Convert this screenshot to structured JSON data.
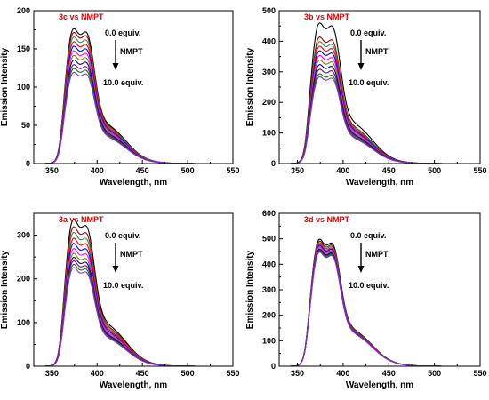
{
  "chart_data": [
    {
      "type": "line",
      "title": "3c vs NMPT",
      "xlabel": "Wavelength, nm",
      "ylabel": "Emission Intensity",
      "xlim": [
        330,
        550
      ],
      "ylim": [
        0,
        200
      ],
      "xticks": [
        350,
        400,
        450,
        500,
        550
      ],
      "yticks": [
        0,
        50,
        100,
        150,
        200
      ],
      "annotations": {
        "start": "0.0 equiv.",
        "label": "NMPT",
        "end": "10.0 equiv."
      },
      "series": [
        {
          "color": "#000000",
          "peak1": 175,
          "peak2": 178
        },
        {
          "color": "#b00000",
          "peak1": 170,
          "peak2": 173
        },
        {
          "color": "#2e8b57",
          "peak1": 164,
          "peak2": 167
        },
        {
          "color": "#ff0000",
          "peak1": 158,
          "peak2": 161
        },
        {
          "color": "#0000ff",
          "peak1": 152,
          "peak2": 155
        },
        {
          "color": "#ff00ff",
          "peak1": 146,
          "peak2": 149
        },
        {
          "color": "#808000",
          "peak1": 140,
          "peak2": 143
        },
        {
          "color": "#000080",
          "peak1": 134,
          "peak2": 137
        },
        {
          "color": "#800080",
          "peak1": 128,
          "peak2": 131
        },
        {
          "color": "#008000",
          "peak1": 123,
          "peak2": 126
        },
        {
          "color": "#8a2be2",
          "peak1": 118,
          "peak2": 121
        }
      ]
    },
    {
      "type": "line",
      "title": "3b vs NMPT",
      "xlabel": "Wavelength, nm",
      "ylabel": "Emission Intensity",
      "xlim": [
        330,
        550
      ],
      "ylim": [
        0,
        500
      ],
      "xticks": [
        350,
        400,
        450,
        500,
        550
      ],
      "yticks": [
        0,
        100,
        200,
        300,
        400,
        500
      ],
      "annotations": {
        "start": "0.0 equiv.",
        "label": "NMPT",
        "end": "10.0 equiv."
      },
      "series": [
        {
          "color": "#000000",
          "peak1": 455,
          "peak2": 465
        },
        {
          "color": "#b00000",
          "peak1": 410,
          "peak2": 418
        },
        {
          "color": "#2e8b57",
          "peak1": 395,
          "peak2": 403
        },
        {
          "color": "#ff0000",
          "peak1": 380,
          "peak2": 388
        },
        {
          "color": "#0000ff",
          "peak1": 365,
          "peak2": 373
        },
        {
          "color": "#ff00ff",
          "peak1": 350,
          "peak2": 358
        },
        {
          "color": "#808000",
          "peak1": 335,
          "peak2": 343
        },
        {
          "color": "#000080",
          "peak1": 320,
          "peak2": 328
        },
        {
          "color": "#800080",
          "peak1": 305,
          "peak2": 313
        },
        {
          "color": "#008000",
          "peak1": 290,
          "peak2": 298
        },
        {
          "color": "#8a2be2",
          "peak1": 280,
          "peak2": 288
        }
      ]
    },
    {
      "type": "line",
      "title": "3a vs NMPT",
      "xlabel": "Wavelength, nm",
      "ylabel": "Emission Intensity",
      "xlim": [
        330,
        550
      ],
      "ylim": [
        0,
        350
      ],
      "xticks": [
        350,
        400,
        450,
        500,
        550
      ],
      "yticks": [
        0,
        100,
        200,
        300
      ],
      "annotations": {
        "start": "0.0 equiv.",
        "label": "NMPT",
        "end": "10.0 equiv."
      },
      "series": [
        {
          "color": "#000000",
          "peak1": 335,
          "peak2": 333
        },
        {
          "color": "#b00000",
          "peak1": 318,
          "peak2": 316
        },
        {
          "color": "#2e8b57",
          "peak1": 305,
          "peak2": 303
        },
        {
          "color": "#ff0000",
          "peak1": 292,
          "peak2": 290
        },
        {
          "color": "#0000ff",
          "peak1": 280,
          "peak2": 278
        },
        {
          "color": "#ff00ff",
          "peak1": 268,
          "peak2": 266
        },
        {
          "color": "#808000",
          "peak1": 257,
          "peak2": 255
        },
        {
          "color": "#000080",
          "peak1": 248,
          "peak2": 246
        },
        {
          "color": "#800080",
          "peak1": 240,
          "peak2": 238
        },
        {
          "color": "#008000",
          "peak1": 232,
          "peak2": 230
        },
        {
          "color": "#8a2be2",
          "peak1": 225,
          "peak2": 223
        }
      ]
    },
    {
      "type": "line",
      "title": "3d vs NMPT",
      "xlabel": "Wavelength, nm",
      "ylabel": "Emission Intensity",
      "xlim": [
        330,
        550
      ],
      "ylim": [
        0,
        600
      ],
      "xticks": [
        350,
        400,
        450,
        500,
        550
      ],
      "yticks": [
        0,
        100,
        200,
        300,
        400,
        500,
        600
      ],
      "annotations": {
        "start": "0.0 equiv.",
        "label": "NMPT",
        "end": "10.0 equiv."
      },
      "series": [
        {
          "color": "#000000",
          "peak1": 495,
          "peak2": 500
        },
        {
          "color": "#b00000",
          "peak1": 488,
          "peak2": 492
        },
        {
          "color": "#2e8b57",
          "peak1": 482,
          "peak2": 486
        },
        {
          "color": "#ff0000",
          "peak1": 476,
          "peak2": 480
        },
        {
          "color": "#0000ff",
          "peak1": 471,
          "peak2": 475
        },
        {
          "color": "#ff00ff",
          "peak1": 466,
          "peak2": 470
        },
        {
          "color": "#808000",
          "peak1": 461,
          "peak2": 465
        },
        {
          "color": "#000080",
          "peak1": 456,
          "peak2": 460
        },
        {
          "color": "#800080",
          "peak1": 452,
          "peak2": 456
        },
        {
          "color": "#008000",
          "peak1": 448,
          "peak2": 452
        },
        {
          "color": "#8a2be2",
          "peak1": 445,
          "peak2": 449
        }
      ]
    }
  ]
}
